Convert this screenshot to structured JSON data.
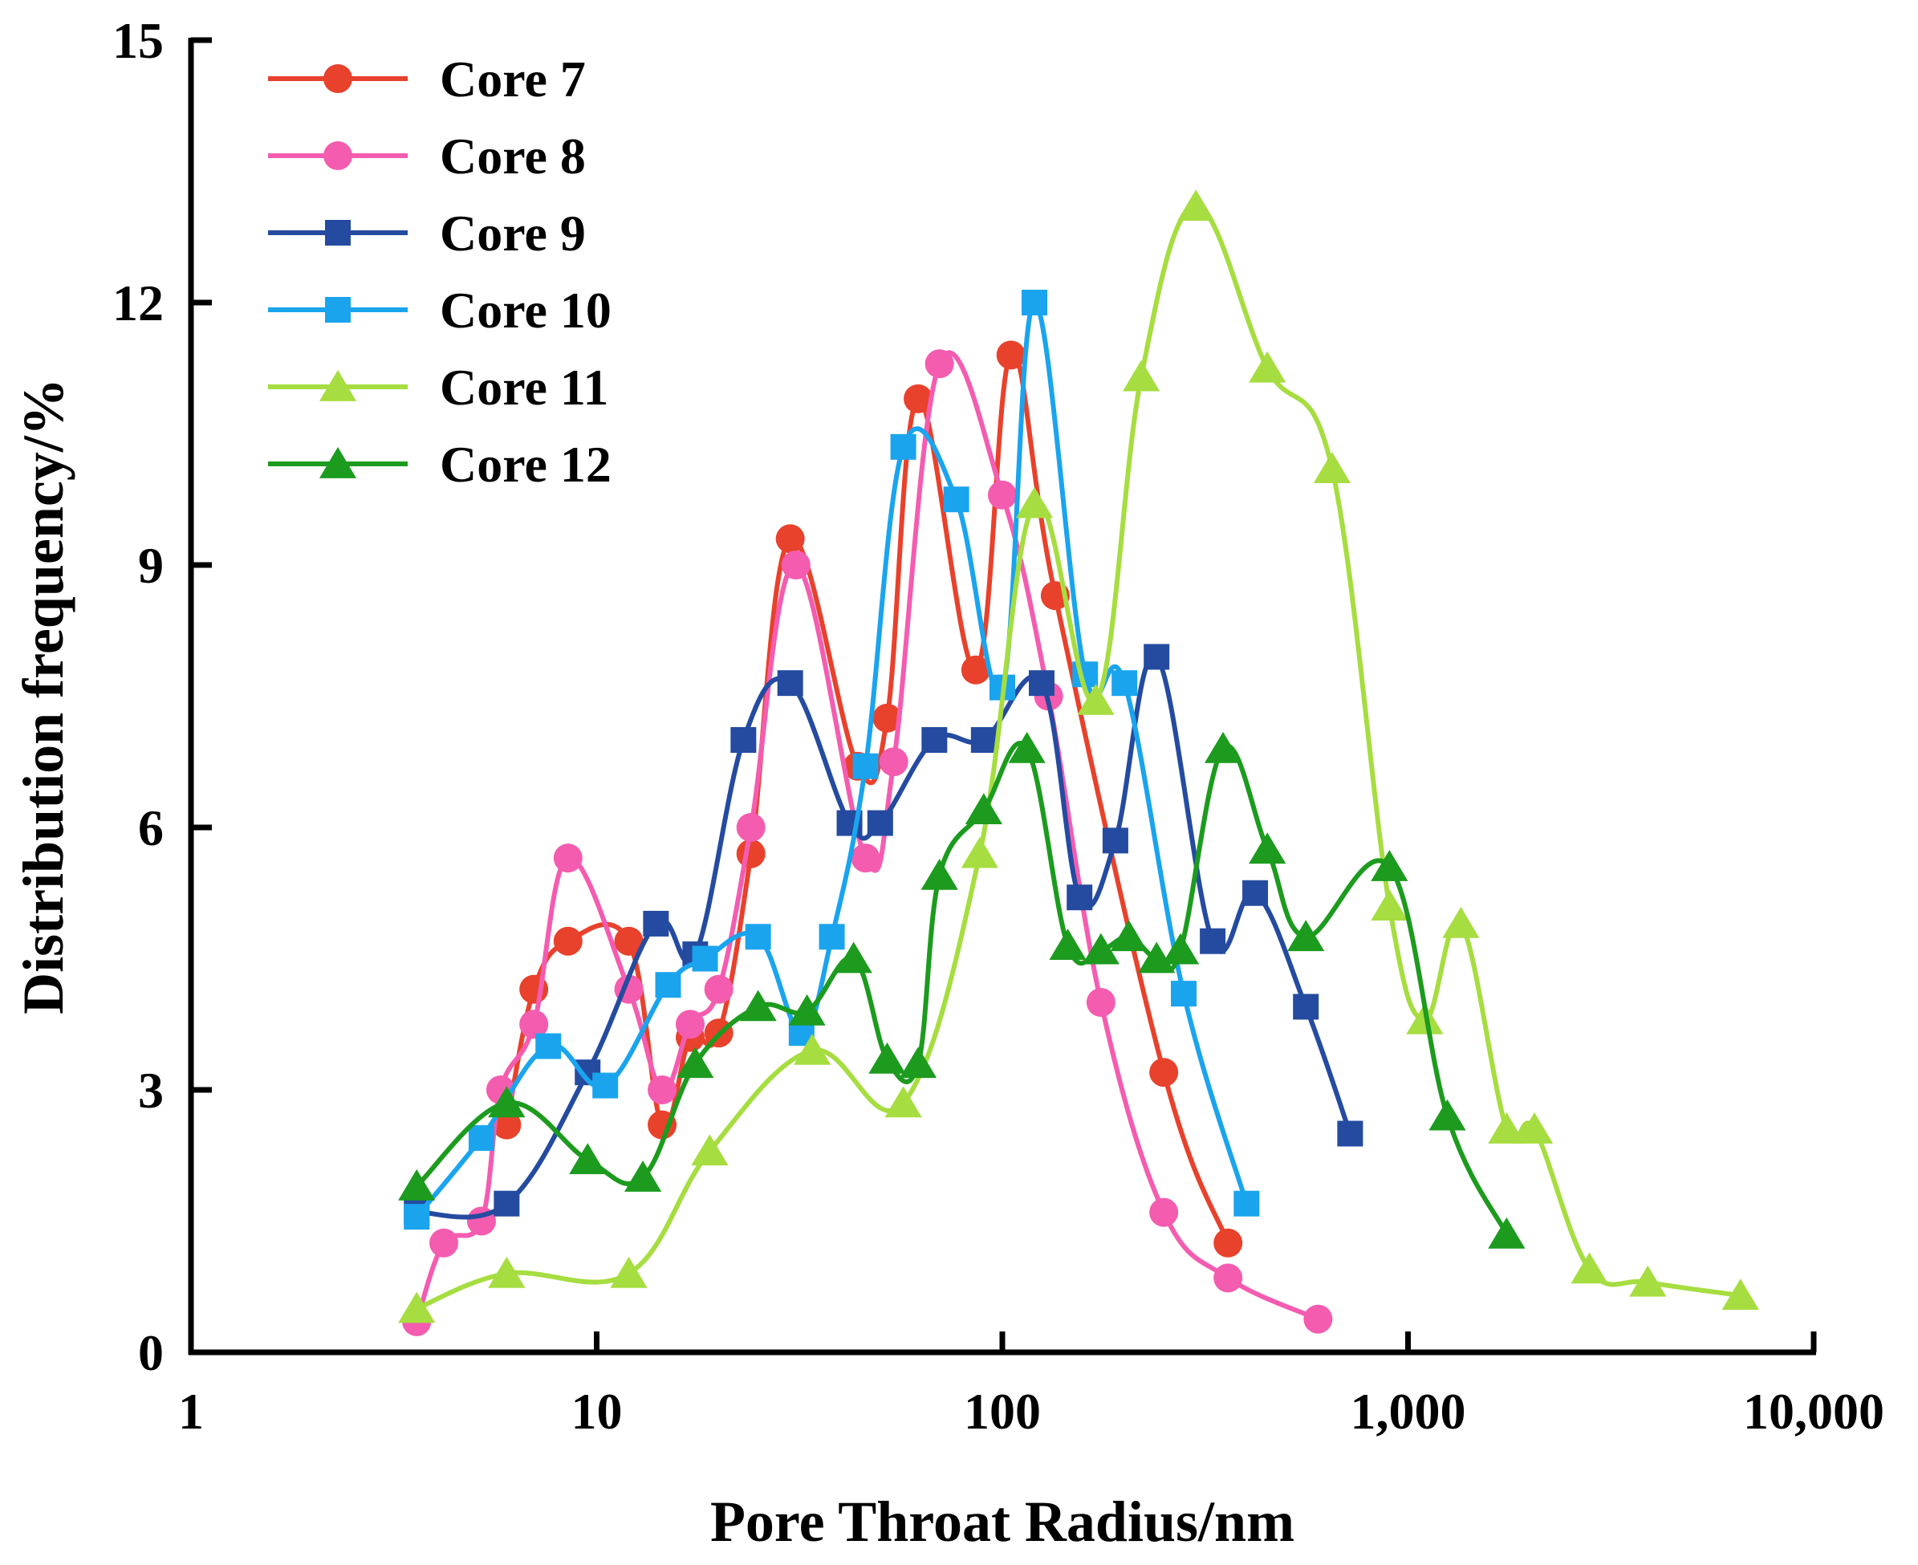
{
  "chart_data": {
    "type": "line",
    "title": "",
    "xlabel": "Pore Throat Radius/nm",
    "ylabel": "Distribution frequency/%",
    "xscale": "log",
    "xlim": [
      1,
      10000
    ],
    "ylim": [
      0,
      15
    ],
    "xticks": [
      1,
      10,
      100,
      1000,
      10000
    ],
    "xtick_labels": [
      "1",
      "10",
      "100",
      "1,000",
      "10,000"
    ],
    "yticks": [
      0,
      3,
      6,
      9,
      12,
      15
    ],
    "ytick_labels": [
      "0",
      "3",
      "6",
      "9",
      "12",
      "15"
    ],
    "legend_position": "top-left",
    "grid": false,
    "series": [
      {
        "name": "Core 7",
        "color": "#e8412c",
        "marker": "circle",
        "points": [
          [
            6,
            2.6
          ],
          [
            7,
            4.15
          ],
          [
            8.5,
            4.7
          ],
          [
            12,
            4.7
          ],
          [
            14.5,
            2.6
          ],
          [
            17,
            3.6
          ],
          [
            20,
            3.65
          ],
          [
            24,
            5.7
          ],
          [
            30,
            9.3
          ],
          [
            44,
            6.7
          ],
          [
            52,
            7.25
          ],
          [
            62,
            10.9
          ],
          [
            86,
            7.8
          ],
          [
            105,
            11.4
          ],
          [
            135,
            8.65
          ],
          [
            250,
            3.2
          ],
          [
            360,
            1.25
          ]
        ]
      },
      {
        "name": "Core 8",
        "color": "#f45cb0",
        "marker": "circle",
        "points": [
          [
            3.6,
            0.35
          ],
          [
            4.2,
            1.25
          ],
          [
            5.2,
            1.5
          ],
          [
            5.8,
            3.0
          ],
          [
            7,
            3.75
          ],
          [
            8.5,
            5.65
          ],
          [
            12,
            4.15
          ],
          [
            14.5,
            3.0
          ],
          [
            17,
            3.75
          ],
          [
            20,
            4.15
          ],
          [
            24,
            6.0
          ],
          [
            31,
            9.0
          ],
          [
            46,
            5.65
          ],
          [
            54,
            6.75
          ],
          [
            70,
            11.3
          ],
          [
            100,
            9.8
          ],
          [
            130,
            7.5
          ],
          [
            175,
            4.0
          ],
          [
            250,
            1.6
          ],
          [
            360,
            0.85
          ],
          [
            600,
            0.38
          ]
        ]
      },
      {
        "name": "Core 9",
        "color": "#244ba0",
        "marker": "square",
        "points": [
          [
            3.6,
            1.6
          ],
          [
            6,
            1.7
          ],
          [
            9.5,
            3.2
          ],
          [
            14,
            4.9
          ],
          [
            17.5,
            4.55
          ],
          [
            23,
            7.0
          ],
          [
            30,
            7.65
          ],
          [
            42,
            6.05
          ],
          [
            50,
            6.05
          ],
          [
            68,
            7.0
          ],
          [
            90,
            7.0
          ],
          [
            125,
            7.65
          ],
          [
            155,
            5.2
          ],
          [
            190,
            5.85
          ],
          [
            240,
            7.95
          ],
          [
            330,
            4.7
          ],
          [
            420,
            5.25
          ],
          [
            560,
            3.95
          ],
          [
            720,
            2.5
          ]
        ]
      },
      {
        "name": "Core 10",
        "color": "#1aa4ee",
        "marker": "square",
        "points": [
          [
            3.6,
            1.55
          ],
          [
            5.2,
            2.45
          ],
          [
            7.6,
            3.5
          ],
          [
            10.5,
            3.05
          ],
          [
            15,
            4.2
          ],
          [
            18.5,
            4.5
          ],
          [
            25,
            4.75
          ],
          [
            32,
            3.65
          ],
          [
            38,
            4.75
          ],
          [
            46,
            6.7
          ],
          [
            57,
            10.35
          ],
          [
            77,
            9.75
          ],
          [
            100,
            7.6
          ],
          [
            120,
            12.0
          ],
          [
            160,
            7.75
          ],
          [
            200,
            7.65
          ],
          [
            280,
            4.1
          ],
          [
            400,
            1.7
          ]
        ]
      },
      {
        "name": "Core 11",
        "color": "#a6dd40",
        "marker": "triangle",
        "points": [
          [
            3.6,
            0.5
          ],
          [
            6,
            0.9
          ],
          [
            12,
            0.9
          ],
          [
            19,
            2.3
          ],
          [
            34,
            3.45
          ],
          [
            57,
            2.85
          ],
          [
            88,
            5.7
          ],
          [
            120,
            9.7
          ],
          [
            170,
            7.45
          ],
          [
            220,
            11.15
          ],
          [
            300,
            13.1
          ],
          [
            450,
            11.25
          ],
          [
            650,
            10.1
          ],
          [
            900,
            5.1
          ],
          [
            1100,
            3.8
          ],
          [
            1350,
            4.9
          ],
          [
            1750,
            2.55
          ],
          [
            2050,
            2.55
          ],
          [
            2800,
            0.95
          ],
          [
            3900,
            0.8
          ],
          [
            6600,
            0.65
          ]
        ]
      },
      {
        "name": "Core 12",
        "color": "#1c9b1e",
        "marker": "triangle",
        "points": [
          [
            3.6,
            1.9
          ],
          [
            6,
            2.85
          ],
          [
            9.5,
            2.2
          ],
          [
            13,
            2.0
          ],
          [
            17.5,
            3.3
          ],
          [
            25,
            3.95
          ],
          [
            33,
            3.9
          ],
          [
            43,
            4.5
          ],
          [
            52,
            3.35
          ],
          [
            62,
            3.3
          ],
          [
            70,
            5.45
          ],
          [
            90,
            6.2
          ],
          [
            115,
            6.9
          ],
          [
            145,
            4.65
          ],
          [
            175,
            4.6
          ],
          [
            205,
            4.75
          ],
          [
            240,
            4.5
          ],
          [
            275,
            4.6
          ],
          [
            350,
            6.9
          ],
          [
            450,
            5.75
          ],
          [
            560,
            4.75
          ],
          [
            900,
            5.55
          ],
          [
            1250,
            2.7
          ],
          [
            1750,
            1.35
          ]
        ]
      }
    ]
  }
}
